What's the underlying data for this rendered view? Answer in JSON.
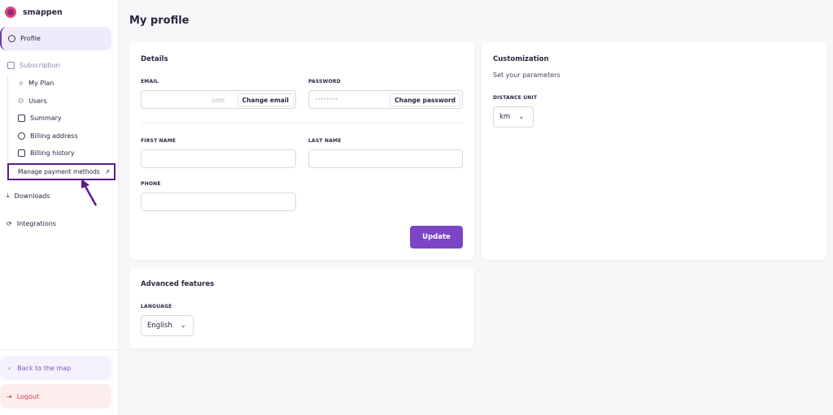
{
  "brand": "smappen",
  "sidebar": {
    "profile": "Profile",
    "subscription": "Subscription",
    "items": [
      {
        "label": "My Plan",
        "icon": "star-icon"
      },
      {
        "label": "Users",
        "icon": "users-icon"
      },
      {
        "label": "Summary",
        "icon": "document-icon"
      },
      {
        "label": "Billing address",
        "icon": "location-icon"
      },
      {
        "label": "Billing history",
        "icon": "receipt-icon"
      }
    ],
    "manage_payment": "Manage payment methods",
    "downloads": "Downloads",
    "integrations": "Integrations",
    "back": "Back to the map",
    "logout": "Logout"
  },
  "page_title": "My profile",
  "details": {
    "title": "Details",
    "email_label": "EMAIL",
    "email_value": "com",
    "change_email": "Change email",
    "password_label": "PASSWORD",
    "password_value": "••••••••",
    "change_password": "Change password",
    "first_name_label": "FIRST NAME",
    "last_name_label": "LAST NAME",
    "phone_label": "PHONE",
    "update": "Update"
  },
  "advanced": {
    "title": "Advanced features",
    "language_label": "LANGUAGE",
    "language_value": "English"
  },
  "customization": {
    "title": "Customization",
    "subtitle": "Set your parameters",
    "distance_label": "DISTANCE UNIT",
    "distance_value": "km"
  },
  "colors": {
    "accent": "#7b45c6",
    "highlight": "#5e1c88",
    "logout": "#d9373f"
  }
}
